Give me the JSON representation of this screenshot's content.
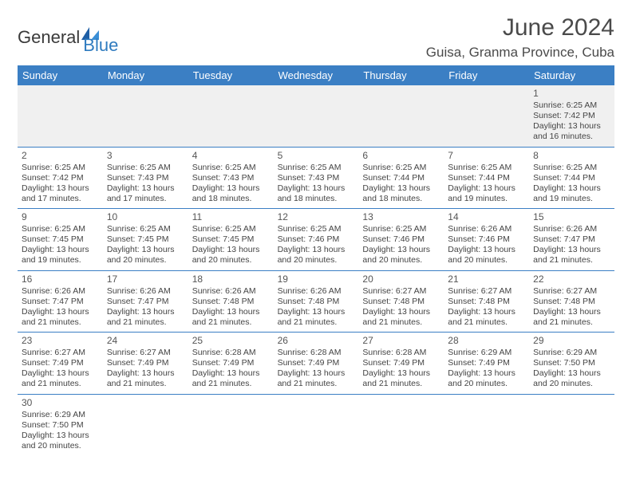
{
  "logo": {
    "text1": "General",
    "text2": "Blue"
  },
  "title": "June 2024",
  "location": "Guisa, Granma Province, Cuba",
  "colors": {
    "header_bg": "#3b7fc4",
    "header_fg": "#ffffff",
    "rule": "#3b7fc4",
    "alt_row": "#f0f0f0",
    "text": "#444444",
    "logo_blue": "#2f7bbf"
  },
  "dayNames": [
    "Sunday",
    "Monday",
    "Tuesday",
    "Wednesday",
    "Thursday",
    "Friday",
    "Saturday"
  ],
  "weeks": [
    [
      null,
      null,
      null,
      null,
      null,
      null,
      {
        "n": "1",
        "sr": "Sunrise: 6:25 AM",
        "ss": "Sunset: 7:42 PM",
        "dl": "Daylight: 13 hours and 16 minutes."
      }
    ],
    [
      {
        "n": "2",
        "sr": "Sunrise: 6:25 AM",
        "ss": "Sunset: 7:42 PM",
        "dl": "Daylight: 13 hours and 17 minutes."
      },
      {
        "n": "3",
        "sr": "Sunrise: 6:25 AM",
        "ss": "Sunset: 7:43 PM",
        "dl": "Daylight: 13 hours and 17 minutes."
      },
      {
        "n": "4",
        "sr": "Sunrise: 6:25 AM",
        "ss": "Sunset: 7:43 PM",
        "dl": "Daylight: 13 hours and 18 minutes."
      },
      {
        "n": "5",
        "sr": "Sunrise: 6:25 AM",
        "ss": "Sunset: 7:43 PM",
        "dl": "Daylight: 13 hours and 18 minutes."
      },
      {
        "n": "6",
        "sr": "Sunrise: 6:25 AM",
        "ss": "Sunset: 7:44 PM",
        "dl": "Daylight: 13 hours and 18 minutes."
      },
      {
        "n": "7",
        "sr": "Sunrise: 6:25 AM",
        "ss": "Sunset: 7:44 PM",
        "dl": "Daylight: 13 hours and 19 minutes."
      },
      {
        "n": "8",
        "sr": "Sunrise: 6:25 AM",
        "ss": "Sunset: 7:44 PM",
        "dl": "Daylight: 13 hours and 19 minutes."
      }
    ],
    [
      {
        "n": "9",
        "sr": "Sunrise: 6:25 AM",
        "ss": "Sunset: 7:45 PM",
        "dl": "Daylight: 13 hours and 19 minutes."
      },
      {
        "n": "10",
        "sr": "Sunrise: 6:25 AM",
        "ss": "Sunset: 7:45 PM",
        "dl": "Daylight: 13 hours and 20 minutes."
      },
      {
        "n": "11",
        "sr": "Sunrise: 6:25 AM",
        "ss": "Sunset: 7:45 PM",
        "dl": "Daylight: 13 hours and 20 minutes."
      },
      {
        "n": "12",
        "sr": "Sunrise: 6:25 AM",
        "ss": "Sunset: 7:46 PM",
        "dl": "Daylight: 13 hours and 20 minutes."
      },
      {
        "n": "13",
        "sr": "Sunrise: 6:25 AM",
        "ss": "Sunset: 7:46 PM",
        "dl": "Daylight: 13 hours and 20 minutes."
      },
      {
        "n": "14",
        "sr": "Sunrise: 6:26 AM",
        "ss": "Sunset: 7:46 PM",
        "dl": "Daylight: 13 hours and 20 minutes."
      },
      {
        "n": "15",
        "sr": "Sunrise: 6:26 AM",
        "ss": "Sunset: 7:47 PM",
        "dl": "Daylight: 13 hours and 21 minutes."
      }
    ],
    [
      {
        "n": "16",
        "sr": "Sunrise: 6:26 AM",
        "ss": "Sunset: 7:47 PM",
        "dl": "Daylight: 13 hours and 21 minutes."
      },
      {
        "n": "17",
        "sr": "Sunrise: 6:26 AM",
        "ss": "Sunset: 7:47 PM",
        "dl": "Daylight: 13 hours and 21 minutes."
      },
      {
        "n": "18",
        "sr": "Sunrise: 6:26 AM",
        "ss": "Sunset: 7:48 PM",
        "dl": "Daylight: 13 hours and 21 minutes."
      },
      {
        "n": "19",
        "sr": "Sunrise: 6:26 AM",
        "ss": "Sunset: 7:48 PM",
        "dl": "Daylight: 13 hours and 21 minutes."
      },
      {
        "n": "20",
        "sr": "Sunrise: 6:27 AM",
        "ss": "Sunset: 7:48 PM",
        "dl": "Daylight: 13 hours and 21 minutes."
      },
      {
        "n": "21",
        "sr": "Sunrise: 6:27 AM",
        "ss": "Sunset: 7:48 PM",
        "dl": "Daylight: 13 hours and 21 minutes."
      },
      {
        "n": "22",
        "sr": "Sunrise: 6:27 AM",
        "ss": "Sunset: 7:48 PM",
        "dl": "Daylight: 13 hours and 21 minutes."
      }
    ],
    [
      {
        "n": "23",
        "sr": "Sunrise: 6:27 AM",
        "ss": "Sunset: 7:49 PM",
        "dl": "Daylight: 13 hours and 21 minutes."
      },
      {
        "n": "24",
        "sr": "Sunrise: 6:27 AM",
        "ss": "Sunset: 7:49 PM",
        "dl": "Daylight: 13 hours and 21 minutes."
      },
      {
        "n": "25",
        "sr": "Sunrise: 6:28 AM",
        "ss": "Sunset: 7:49 PM",
        "dl": "Daylight: 13 hours and 21 minutes."
      },
      {
        "n": "26",
        "sr": "Sunrise: 6:28 AM",
        "ss": "Sunset: 7:49 PM",
        "dl": "Daylight: 13 hours and 21 minutes."
      },
      {
        "n": "27",
        "sr": "Sunrise: 6:28 AM",
        "ss": "Sunset: 7:49 PM",
        "dl": "Daylight: 13 hours and 21 minutes."
      },
      {
        "n": "28",
        "sr": "Sunrise: 6:29 AM",
        "ss": "Sunset: 7:49 PM",
        "dl": "Daylight: 13 hours and 20 minutes."
      },
      {
        "n": "29",
        "sr": "Sunrise: 6:29 AM",
        "ss": "Sunset: 7:50 PM",
        "dl": "Daylight: 13 hours and 20 minutes."
      }
    ],
    [
      {
        "n": "30",
        "sr": "Sunrise: 6:29 AM",
        "ss": "Sunset: 7:50 PM",
        "dl": "Daylight: 13 hours and 20 minutes."
      },
      null,
      null,
      null,
      null,
      null,
      null
    ]
  ]
}
